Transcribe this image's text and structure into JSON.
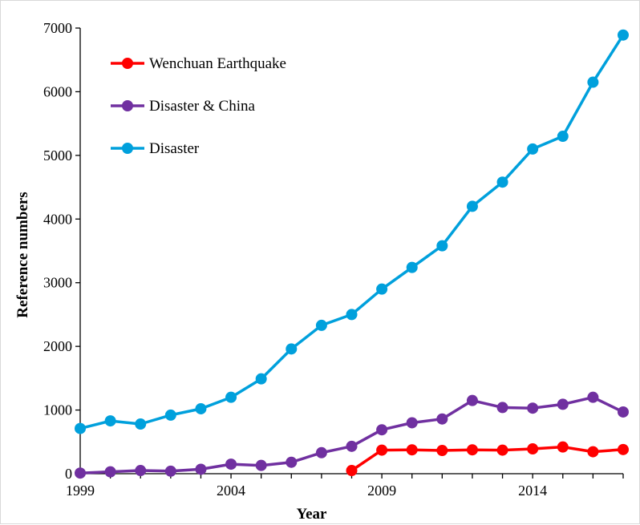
{
  "chart_data": {
    "type": "line",
    "xlabel": "Year",
    "ylabel": "Reference numbers",
    "x": [
      1999,
      2000,
      2001,
      2002,
      2003,
      2004,
      2005,
      2006,
      2007,
      2008,
      2009,
      2010,
      2011,
      2012,
      2013,
      2014,
      2015,
      2016,
      2017
    ],
    "xlim": [
      1999,
      2017
    ],
    "ylim": [
      0,
      7000
    ],
    "x_ticks": [
      "1999",
      "2004",
      "2009",
      "2014"
    ],
    "y_ticks": [
      "0",
      "1000",
      "2000",
      "3000",
      "4000",
      "5000",
      "6000",
      "7000"
    ],
    "grid": false,
    "legend_position": "top-left",
    "series": [
      {
        "name": "Wenchuan Earthquake",
        "color": "#ff0000",
        "values": [
          null,
          null,
          null,
          null,
          null,
          null,
          null,
          null,
          null,
          50,
          370,
          375,
          365,
          375,
          370,
          390,
          420,
          345,
          380
        ]
      },
      {
        "name": "Disaster & China",
        "color": "#7030a0",
        "values": [
          10,
          30,
          50,
          40,
          70,
          150,
          130,
          180,
          330,
          430,
          690,
          800,
          860,
          1150,
          1040,
          1030,
          1090,
          1200,
          970
        ]
      },
      {
        "name": "Disaster",
        "color": "#00a0dc",
        "values": [
          710,
          830,
          780,
          920,
          1020,
          1200,
          1490,
          1960,
          2330,
          2500,
          2900,
          3240,
          3580,
          4200,
          4580,
          5100,
          5300,
          6150,
          6890
        ]
      }
    ]
  }
}
